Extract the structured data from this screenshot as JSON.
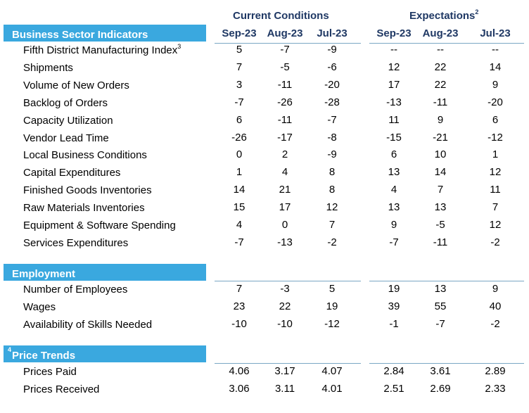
{
  "groups": {
    "current": "Current Conditions",
    "expectations": "Expectations",
    "expectations_sup": "2"
  },
  "columns": [
    "Sep-23",
    "Aug-23",
    "Jul-23",
    "Sep-23",
    "Aug-23",
    "Jul-23"
  ],
  "sections": [
    {
      "title": "Business Sector Indicators",
      "title_sup": "",
      "rows": [
        {
          "label": "Fifth District Manufacturing Index",
          "sup": "3",
          "values": [
            "5",
            "-7",
            "-9",
            "--",
            "--",
            "--"
          ]
        },
        {
          "label": "Shipments",
          "sup": "",
          "values": [
            "7",
            "-5",
            "-6",
            "12",
            "22",
            "14"
          ]
        },
        {
          "label": "Volume of New Orders",
          "sup": "",
          "values": [
            "3",
            "-11",
            "-20",
            "17",
            "22",
            "9"
          ]
        },
        {
          "label": "Backlog of Orders",
          "sup": "",
          "values": [
            "-7",
            "-26",
            "-28",
            "-13",
            "-11",
            "-20"
          ]
        },
        {
          "label": "Capacity Utilization",
          "sup": "",
          "values": [
            "6",
            "-11",
            "-7",
            "11",
            "9",
            "6"
          ]
        },
        {
          "label": "Vendor Lead Time",
          "sup": "",
          "values": [
            "-26",
            "-17",
            "-8",
            "-15",
            "-21",
            "-12"
          ]
        },
        {
          "label": "Local Business Conditions",
          "sup": "",
          "values": [
            "0",
            "2",
            "-9",
            "6",
            "10",
            "1"
          ]
        },
        {
          "label": "Capital Expenditures",
          "sup": "",
          "values": [
            "1",
            "4",
            "8",
            "13",
            "14",
            "12"
          ]
        },
        {
          "label": "Finished Goods Inventories",
          "sup": "",
          "values": [
            "14",
            "21",
            "8",
            "4",
            "7",
            "11"
          ]
        },
        {
          "label": "Raw Materials Inventories",
          "sup": "",
          "values": [
            "15",
            "17",
            "12",
            "13",
            "13",
            "7"
          ]
        },
        {
          "label": "Equipment & Software Spending",
          "sup": "",
          "values": [
            "4",
            "0",
            "7",
            "9",
            "-5",
            "12"
          ]
        },
        {
          "label": "Services Expenditures",
          "sup": "",
          "values": [
            "-7",
            "-13",
            "-2",
            "-7",
            "-11",
            "-2"
          ]
        }
      ]
    },
    {
      "title": "Employment",
      "title_sup": "",
      "rows": [
        {
          "label": "Number of Employees",
          "sup": "",
          "values": [
            "7",
            "-3",
            "5",
            "19",
            "13",
            "9"
          ]
        },
        {
          "label": "Wages",
          "sup": "",
          "values": [
            "23",
            "22",
            "19",
            "39",
            "55",
            "40"
          ]
        },
        {
          "label": "Availability of Skills Needed",
          "sup": "",
          "values": [
            "-10",
            "-10",
            "-12",
            "-1",
            "-7",
            "-2"
          ]
        }
      ]
    },
    {
      "title": "Price Trends",
      "title_sup": "4",
      "rows": [
        {
          "label": "Prices Paid",
          "sup": "",
          "values": [
            "4.06",
            "3.17",
            "4.07",
            "2.84",
            "3.61",
            "2.89"
          ]
        },
        {
          "label": "Prices Received",
          "sup": "",
          "values": [
            "3.06",
            "3.11",
            "4.01",
            "2.51",
            "2.69",
            "2.33"
          ]
        }
      ]
    }
  ]
}
